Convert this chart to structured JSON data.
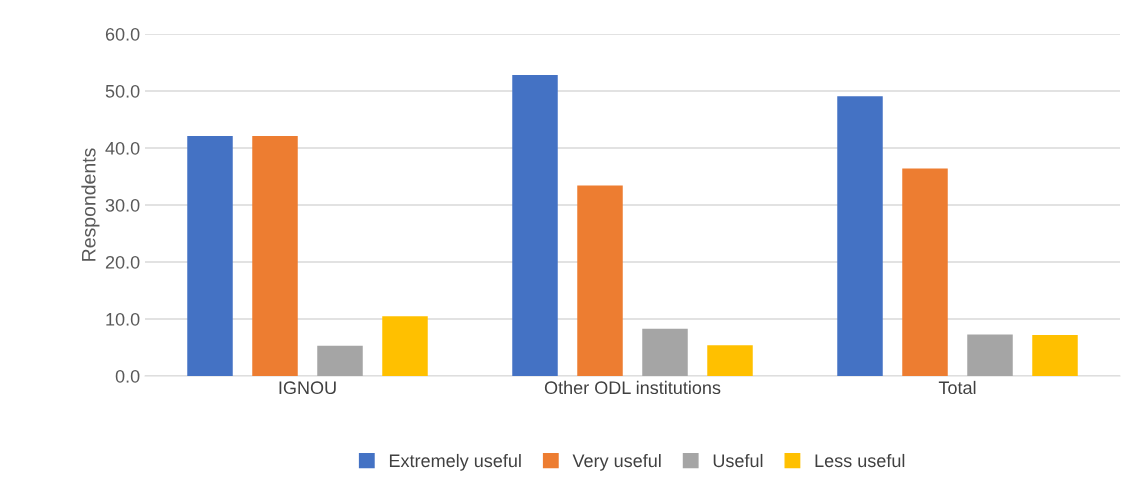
{
  "chart_data": {
    "type": "bar",
    "ylabel": "Respondents",
    "categories": [
      "IGNOU",
      "Other ODL institutions",
      "Total"
    ],
    "series": [
      {
        "name": "Extremely useful",
        "color": "#4472c4",
        "values": [
          42.1,
          52.8,
          49.1
        ]
      },
      {
        "name": "Very useful",
        "color": "#ed7d31",
        "values": [
          42.1,
          33.4,
          36.4
        ]
      },
      {
        "name": "Useful",
        "color": "#a5a5a5",
        "values": [
          5.3,
          8.3,
          7.3
        ]
      },
      {
        "name": "Less useful",
        "color": "#ffc000",
        "values": [
          10.5,
          5.4,
          7.2
        ]
      }
    ],
    "ylim": [
      0,
      60
    ],
    "yticks": [
      {
        "value": 0,
        "label": "0.0"
      },
      {
        "value": 10,
        "label": "10.0"
      },
      {
        "value": 20,
        "label": "20.0"
      },
      {
        "value": 30,
        "label": "30.0"
      },
      {
        "value": 40,
        "label": "40.0"
      },
      {
        "value": 50,
        "label": "50.0"
      },
      {
        "value": 60,
        "label": "60.0"
      }
    ],
    "grid": "y",
    "legend": "bottom"
  }
}
